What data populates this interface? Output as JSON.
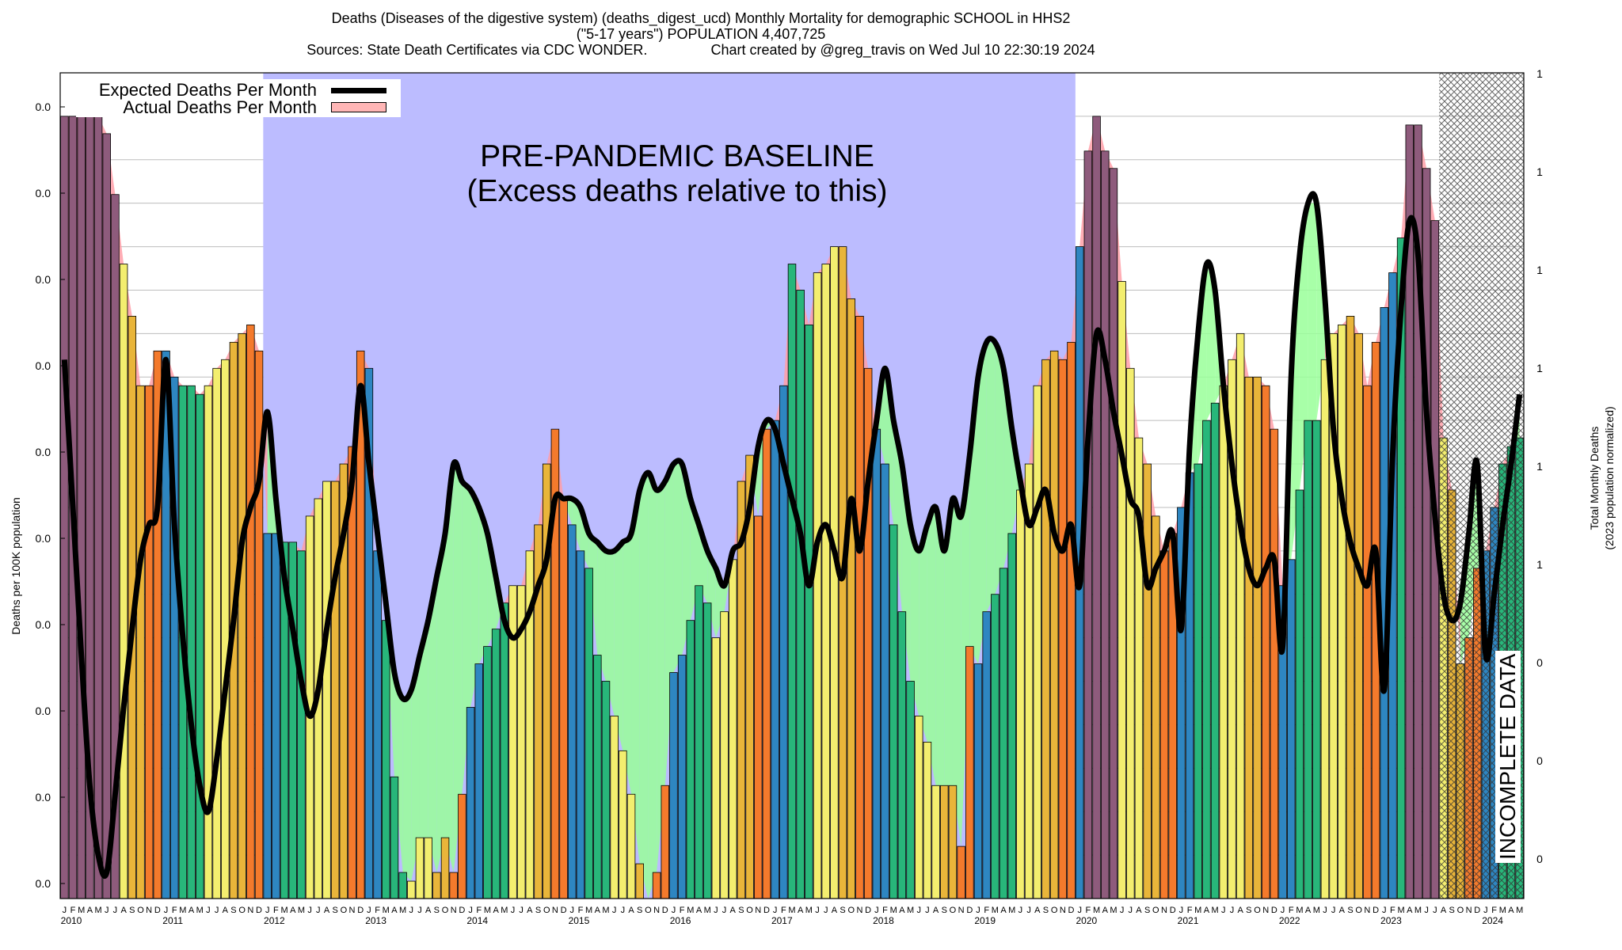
{
  "header": {
    "line1": "Deaths (Diseases of the digestive system) (deaths_digest_ucd) Monthly Mortality for demographic SCHOOL in HHS2",
    "line2": "(\"5-17 years\") POPULATION 4,407,725",
    "line3": "Sources: State Death Certificates via CDC WONDER.                Chart created by @greg_travis on Wed Jul 10 22:30:19 2024"
  },
  "legend": {
    "expected": "Expected Deaths Per Month",
    "actual": "Actual Deaths Per Month"
  },
  "annotations": {
    "baseline_line1": "PRE-PANDEMIC BASELINE",
    "baseline_line2": "(Excess deaths relative to this)",
    "incomplete": "INCOMPLETE DATA"
  },
  "axes": {
    "ylabel_left": "Deaths per 100K population",
    "ylabel_right_1": "Total Monthly Deaths",
    "ylabel_right_2": "(2023 population normalized)",
    "left_ticks": [
      "0.0",
      "0.0",
      "0.0",
      "0.0",
      "0.0",
      "0.0",
      "0.0",
      "0.0",
      "0.0",
      "0.0"
    ],
    "right_ticks": [
      "1",
      "1",
      "1",
      "1",
      "1",
      "1",
      "0",
      "0",
      "0"
    ]
  },
  "colors": {
    "baseline_region": "#bcbcff",
    "season_low": "#2e86c1",
    "season_mid": "#28b67a",
    "season_yellow": "#f3ee6f",
    "season_orange": "#f47a2c",
    "season_purple": "#8e5b7c",
    "excess_fill": "#99ff99",
    "deficit_fill": "#ff9fa8",
    "expected_line": "#000000"
  },
  "chart_data": {
    "type": "bar",
    "title": "Deaths (Diseases of the digestive system) (deaths_digest_ucd) Monthly Mortality for demographic SCHOOL in HHS2",
    "xlabel": "",
    "ylabel": "Deaths per 100K population",
    "y2label": "Total Monthly Deaths (2023 population normalized)",
    "years": [
      "2010",
      "2011",
      "2012",
      "2013",
      "2014",
      "2015",
      "2016",
      "2017",
      "2018",
      "2019",
      "2020",
      "2021",
      "2022",
      "2023",
      "2024"
    ],
    "month_letters": [
      "J",
      "F",
      "M",
      "A",
      "M",
      "J",
      "J",
      "A",
      "S",
      "O",
      "N",
      "D"
    ],
    "baseline_period": [
      "2012-01",
      "2019-12"
    ],
    "incomplete_from": "2023-08",
    "series": [
      {
        "name": "Actual Deaths Per Month",
        "kind": "bar",
        "values": [
          9,
          9,
          9,
          9,
          9,
          8.8,
          8.1,
          7.3,
          6.7,
          5.9,
          5.9,
          6.3,
          6.3,
          6.0,
          5.9,
          5.9,
          5.8,
          5.9,
          6.1,
          6.2,
          6.4,
          6.5,
          6.6,
          6.3,
          4.2,
          4.2,
          4.1,
          4.1,
          4.0,
          4.4,
          4.6,
          4.8,
          4.8,
          5.0,
          5.2,
          6.3,
          6.1,
          4.0,
          3.2,
          1.4,
          0.3,
          0.2,
          0.7,
          0.7,
          0.3,
          0.7,
          0.3,
          1.2,
          2.2,
          2.7,
          2.9,
          3.1,
          3.4,
          3.6,
          3.6,
          4.0,
          4.3,
          5.0,
          5.4,
          4.6,
          4.3,
          4.0,
          3.8,
          2.8,
          2.5,
          2.1,
          1.7,
          1.2,
          0.4,
          0,
          0.3,
          1.3,
          2.6,
          2.8,
          3.2,
          3.6,
          3.4,
          3.0,
          3.3,
          3.9,
          4.8,
          5.1,
          4.4,
          5.4,
          5.5,
          5.9,
          7.3,
          7.0,
          6.6,
          7.2,
          7.3,
          7.5,
          7.5,
          6.9,
          6.7,
          6.1,
          5.4,
          5.0,
          4.3,
          3.3,
          2.5,
          2.1,
          1.8,
          1.3,
          1.3,
          1.3,
          0.6,
          2.9,
          2.7,
          3.3,
          3.5,
          3.8,
          4.2,
          4.7,
          5.0,
          5.9,
          6.2,
          6.3,
          6.2,
          6.4,
          7.5,
          8.6,
          9.0,
          8.6,
          8.4,
          7.1,
          6.1,
          5.3,
          5.0,
          4.4,
          4.0,
          4.2,
          4.5,
          4.9,
          5.0,
          5.5,
          5.7,
          5.9,
          6.2,
          6.5,
          6.0,
          6.0,
          5.9,
          5.4,
          3.6,
          3.9,
          4.7,
          5.5,
          5.5,
          6.2,
          6.5,
          6.6,
          6.7,
          6.5,
          5.9,
          6.4,
          6.8,
          7.2,
          7.6,
          8.9,
          8.9,
          8.4,
          7.8,
          5.3,
          4.7,
          2.7,
          3.0,
          3.8,
          4.0,
          4.5,
          5.0,
          5.2,
          5.3
        ]
      },
      {
        "name": "Expected Deaths Per Month",
        "kind": "line",
        "values": [
          6.2,
          4.5,
          2.8,
          1.3,
          0.5,
          0.3,
          1.2,
          2.2,
          3.1,
          3.9,
          4.3,
          4.5,
          6.2,
          4.3,
          3.0,
          2.0,
          1.3,
          1.0,
          1.6,
          2.4,
          3.2,
          4.1,
          4.5,
          4.8,
          5.6,
          4.6,
          3.7,
          3.1,
          2.5,
          2.1,
          2.4,
          3.1,
          3.7,
          4.2,
          4.8,
          5.9,
          5.0,
          4.2,
          3.4,
          2.6,
          2.3,
          2.4,
          2.8,
          3.2,
          3.7,
          4.2,
          5.0,
          4.8,
          4.7,
          4.5,
          4.2,
          3.7,
          3.2,
          3.0,
          3.1,
          3.3,
          3.6,
          3.9,
          4.6,
          4.6,
          4.6,
          4.5,
          4.2,
          4.1,
          4.0,
          4.0,
          4.1,
          4.2,
          4.7,
          4.9,
          4.7,
          4.8,
          5.0,
          5.0,
          4.6,
          4.3,
          4.0,
          3.8,
          3.6,
          4.0,
          4.1,
          4.5,
          5.2,
          5.5,
          5.4,
          5.0,
          4.6,
          4.2,
          3.6,
          4.1,
          4.3,
          4.0,
          3.7,
          4.6,
          4.0,
          4.8,
          5.5,
          6.1,
          5.5,
          5.0,
          4.3,
          4.0,
          4.3,
          4.5,
          4.0,
          4.6,
          4.4,
          5.1,
          6.0,
          6.4,
          6.4,
          6.1,
          5.4,
          4.8,
          4.3,
          4.5,
          4.7,
          4.2,
          4.0,
          4.3,
          3.6,
          5.3,
          6.5,
          6.2,
          5.6,
          5.1,
          4.6,
          4.4,
          3.6,
          3.8,
          4.0,
          4.2,
          3.1,
          5.2,
          6.5,
          7.3,
          7.0,
          5.9,
          5.0,
          4.3,
          3.8,
          3.6,
          3.8,
          3.9,
          2.9,
          6.0,
          7.4,
          8.0,
          8.0,
          6.9,
          5.4,
          4.6,
          4.1,
          3.8,
          3.6,
          4.0,
          2.4,
          5.1,
          6.8,
          7.8,
          7.4,
          5.6,
          4.4,
          3.5,
          3.2,
          3.4,
          4.2,
          5.0,
          2.8,
          3.5,
          4.3,
          5.0,
          5.8
        ]
      }
    ],
    "ylim": [
      0,
      9.5
    ],
    "grid": true,
    "legend_position": "top-left"
  }
}
